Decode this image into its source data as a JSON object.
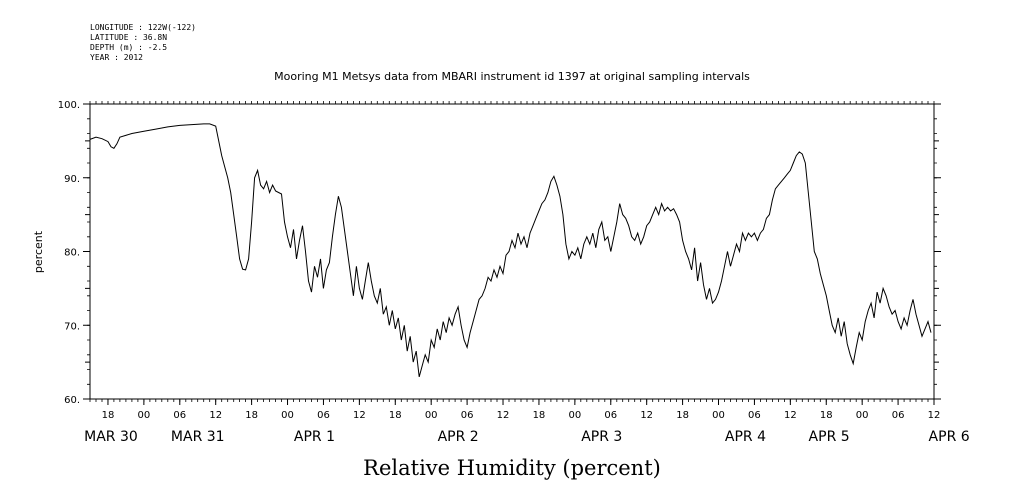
{
  "header": {
    "longitude": "LONGITUDE : 122W(-122)",
    "latitude": "LATITUDE : 36.8N",
    "depth": "DEPTH (m) : -2.5",
    "year": "YEAR : 2012"
  },
  "chart_data": {
    "type": "line",
    "title": "Mooring M1 Metsys data from MBARI instrument id 1397 at original sampling intervals",
    "xlabel": "Relative Humidity (percent)",
    "ylabel": "percent",
    "ylim": [
      60,
      100
    ],
    "yticks": [
      60,
      70,
      80,
      90,
      100
    ],
    "ytick_labels": [
      "60.",
      "70.",
      "80.",
      "90.",
      "100."
    ],
    "xlim_hours": [
      -9,
      132
    ],
    "x_unit": "hours from MAR 30 00:00, 2012",
    "hour_ticks": [
      {
        "h": -6,
        "label": "18"
      },
      {
        "h": 0,
        "label": "00"
      },
      {
        "h": 6,
        "label": "06"
      },
      {
        "h": 12,
        "label": "12"
      },
      {
        "h": 18,
        "label": "18"
      },
      {
        "h": 24,
        "label": "00"
      },
      {
        "h": 30,
        "label": "06"
      },
      {
        "h": 36,
        "label": "12"
      },
      {
        "h": 42,
        "label": "18"
      },
      {
        "h": 48,
        "label": "00"
      },
      {
        "h": 54,
        "label": "06"
      },
      {
        "h": 60,
        "label": "12"
      },
      {
        "h": 66,
        "label": "18"
      },
      {
        "h": 72,
        "label": "00"
      },
      {
        "h": 78,
        "label": "06"
      },
      {
        "h": 84,
        "label": "12"
      },
      {
        "h": 90,
        "label": "18"
      },
      {
        "h": 96,
        "label": "00"
      },
      {
        "h": 102,
        "label": "06"
      },
      {
        "h": 108,
        "label": "12"
      },
      {
        "h": 114,
        "label": "18"
      },
      {
        "h": 120,
        "label": "00"
      },
      {
        "h": 126,
        "label": "06"
      },
      {
        "h": 132,
        "label": "12"
      }
    ],
    "date_labels": [
      {
        "h": -6,
        "label": "MAR 30"
      },
      {
        "h": 9,
        "label": "MAR 31"
      },
      {
        "h": 30,
        "label": "APR  1"
      },
      {
        "h": 54,
        "label": "APR  2"
      },
      {
        "h": 78,
        "label": "APR  3"
      },
      {
        "h": 102,
        "label": "APR  4"
      },
      {
        "h": 126,
        "label": "APR  5"
      },
      {
        "h": 150,
        "label": "APR  6"
      }
    ],
    "series": [
      {
        "values": [
          [
            -9,
            95.2
          ],
          [
            -8,
            95.5
          ],
          [
            -7,
            95.3
          ],
          [
            -6,
            94.9
          ],
          [
            -5.5,
            94.2
          ],
          [
            -5,
            94.0
          ],
          [
            -4.5,
            94.6
          ],
          [
            -4,
            95.5
          ],
          [
            -2,
            96.0
          ],
          [
            0,
            96.3
          ],
          [
            2,
            96.6
          ],
          [
            4,
            96.9
          ],
          [
            6,
            97.1
          ],
          [
            8,
            97.2
          ],
          [
            10,
            97.3
          ],
          [
            11,
            97.3
          ],
          [
            12,
            97.0
          ],
          [
            13,
            93.0
          ],
          [
            13.5,
            91.5
          ],
          [
            14,
            90.0
          ],
          [
            14.5,
            88.0
          ],
          [
            15,
            85.0
          ],
          [
            15.5,
            82.0
          ],
          [
            16,
            79.0
          ],
          [
            16.5,
            77.6
          ],
          [
            17,
            77.5
          ],
          [
            17.5,
            79.0
          ],
          [
            18,
            84.0
          ],
          [
            18.5,
            90.0
          ],
          [
            19,
            91.0
          ],
          [
            19.5,
            89.0
          ],
          [
            20,
            88.5
          ],
          [
            20.5,
            89.5
          ],
          [
            21,
            88.0
          ],
          [
            21.5,
            89.0
          ],
          [
            22,
            88.2
          ],
          [
            23,
            87.8
          ],
          [
            23.5,
            84.0
          ],
          [
            24,
            82.0
          ],
          [
            24.5,
            80.5
          ],
          [
            25,
            83.0
          ],
          [
            25.5,
            79.0
          ],
          [
            26,
            81.5
          ],
          [
            26.5,
            83.5
          ],
          [
            27,
            80.0
          ],
          [
            27.5,
            76.0
          ],
          [
            28,
            74.5
          ],
          [
            28.5,
            78.0
          ],
          [
            29,
            76.5
          ],
          [
            29.5,
            79.0
          ],
          [
            30,
            75.0
          ],
          [
            30.5,
            77.5
          ],
          [
            31,
            78.5
          ],
          [
            31.5,
            82.0
          ],
          [
            32,
            85.0
          ],
          [
            32.5,
            87.5
          ],
          [
            33,
            86.0
          ],
          [
            33.5,
            83.0
          ],
          [
            34,
            80.0
          ],
          [
            34.5,
            77.0
          ],
          [
            35,
            74.0
          ],
          [
            35.5,
            78.0
          ],
          [
            36,
            75.0
          ],
          [
            36.5,
            73.5
          ],
          [
            37,
            76.0
          ],
          [
            37.5,
            78.5
          ],
          [
            38,
            76.0
          ],
          [
            38.5,
            74.0
          ],
          [
            39,
            73.0
          ],
          [
            39.5,
            75.0
          ],
          [
            40,
            71.5
          ],
          [
            40.5,
            72.5
          ],
          [
            41,
            70.0
          ],
          [
            41.5,
            72.0
          ],
          [
            42,
            69.5
          ],
          [
            42.5,
            71.0
          ],
          [
            43,
            68.0
          ],
          [
            43.5,
            70.0
          ],
          [
            44,
            66.5
          ],
          [
            44.5,
            68.5
          ],
          [
            45,
            65.0
          ],
          [
            45.5,
            66.5
          ],
          [
            46,
            63.0
          ],
          [
            46.5,
            64.5
          ],
          [
            47,
            66.0
          ],
          [
            47.5,
            65.0
          ],
          [
            48,
            68.0
          ],
          [
            48.5,
            67.0
          ],
          [
            49,
            69.5
          ],
          [
            49.5,
            68.0
          ],
          [
            50,
            70.5
          ],
          [
            50.5,
            69.0
          ],
          [
            51,
            71.0
          ],
          [
            51.5,
            70.0
          ],
          [
            52,
            71.5
          ],
          [
            52.5,
            72.5
          ],
          [
            53,
            70.0
          ],
          [
            53.5,
            68.0
          ],
          [
            54,
            67.0
          ],
          [
            54.5,
            69.0
          ],
          [
            55,
            70.5
          ],
          [
            55.5,
            72.0
          ],
          [
            56,
            73.5
          ],
          [
            56.5,
            74.0
          ],
          [
            57,
            75.0
          ],
          [
            57.5,
            76.5
          ],
          [
            58,
            76.0
          ],
          [
            58.5,
            77.5
          ],
          [
            59,
            76.5
          ],
          [
            59.5,
            78.0
          ],
          [
            60,
            77.0
          ],
          [
            60.5,
            79.5
          ],
          [
            61,
            80.0
          ],
          [
            61.5,
            81.5
          ],
          [
            62,
            80.5
          ],
          [
            62.5,
            82.5
          ],
          [
            63,
            81.0
          ],
          [
            63.5,
            82.0
          ],
          [
            64,
            80.5
          ],
          [
            64.5,
            82.5
          ],
          [
            65,
            83.5
          ],
          [
            65.5,
            84.5
          ],
          [
            66,
            85.5
          ],
          [
            66.5,
            86.5
          ],
          [
            67,
            87.0
          ],
          [
            67.5,
            88.0
          ],
          [
            68,
            89.5
          ],
          [
            68.5,
            90.2
          ],
          [
            69,
            89.0
          ],
          [
            69.5,
            87.5
          ],
          [
            70,
            85.0
          ],
          [
            70.5,
            81.0
          ],
          [
            71,
            79.0
          ],
          [
            71.5,
            80.0
          ],
          [
            72,
            79.5
          ],
          [
            72.5,
            80.5
          ],
          [
            73,
            79.0
          ],
          [
            73.5,
            81.0
          ],
          [
            74,
            82.0
          ],
          [
            74.5,
            81.0
          ],
          [
            75,
            82.5
          ],
          [
            75.5,
            80.5
          ],
          [
            76,
            83.0
          ],
          [
            76.5,
            84.0
          ],
          [
            77,
            81.5
          ],
          [
            77.5,
            82.0
          ],
          [
            78,
            80.0
          ],
          [
            78.5,
            82.0
          ],
          [
            79,
            84.0
          ],
          [
            79.5,
            86.5
          ],
          [
            80,
            85.0
          ],
          [
            80.5,
            84.5
          ],
          [
            81,
            83.5
          ],
          [
            81.5,
            82.0
          ],
          [
            82,
            81.5
          ],
          [
            82.5,
            82.5
          ],
          [
            83,
            81.0
          ],
          [
            83.5,
            82.0
          ],
          [
            84,
            83.5
          ],
          [
            84.5,
            84.0
          ],
          [
            85,
            85.0
          ],
          [
            85.5,
            86.0
          ],
          [
            86,
            85.0
          ],
          [
            86.5,
            86.5
          ],
          [
            87,
            85.5
          ],
          [
            87.5,
            86.0
          ],
          [
            88,
            85.5
          ],
          [
            88.5,
            85.8
          ],
          [
            89,
            85.0
          ],
          [
            89.5,
            84.0
          ],
          [
            90,
            81.5
          ],
          [
            90.5,
            80.0
          ],
          [
            91,
            79.0
          ],
          [
            91.5,
            77.5
          ],
          [
            92,
            80.5
          ],
          [
            92.5,
            76.0
          ],
          [
            93,
            78.5
          ],
          [
            93.5,
            75.5
          ],
          [
            94,
            73.5
          ],
          [
            94.5,
            75.0
          ],
          [
            95,
            73.0
          ],
          [
            95.5,
            73.5
          ],
          [
            96,
            74.5
          ],
          [
            96.5,
            76.0
          ],
          [
            97,
            78.0
          ],
          [
            97.5,
            80.0
          ],
          [
            98,
            78.0
          ],
          [
            98.5,
            79.5
          ],
          [
            99,
            81.0
          ],
          [
            99.5,
            80.0
          ],
          [
            100,
            82.5
          ],
          [
            100.5,
            81.5
          ],
          [
            101,
            82.5
          ],
          [
            101.5,
            82.0
          ],
          [
            102,
            82.5
          ],
          [
            102.5,
            81.5
          ],
          [
            103,
            82.5
          ],
          [
            103.5,
            83.0
          ],
          [
            104,
            84.5
          ],
          [
            104.5,
            85.0
          ],
          [
            105,
            87.0
          ],
          [
            105.5,
            88.5
          ],
          [
            106,
            89.0
          ],
          [
            106.5,
            89.5
          ],
          [
            107,
            90.0
          ],
          [
            107.5,
            90.5
          ],
          [
            108,
            91.0
          ],
          [
            108.5,
            92.0
          ],
          [
            109,
            93.0
          ],
          [
            109.5,
            93.5
          ],
          [
            110,
            93.2
          ],
          [
            110.5,
            92.0
          ],
          [
            111,
            88.0
          ],
          [
            111.5,
            84.0
          ],
          [
            112,
            80.0
          ],
          [
            112.5,
            79.0
          ],
          [
            113,
            77.0
          ],
          [
            113.5,
            75.5
          ],
          [
            114,
            74.0
          ],
          [
            114.5,
            72.0
          ],
          [
            115,
            70.0
          ],
          [
            115.5,
            69.0
          ],
          [
            116,
            71.0
          ],
          [
            116.5,
            68.5
          ],
          [
            117,
            70.5
          ],
          [
            117.5,
            67.5
          ],
          [
            118,
            66.0
          ],
          [
            118.5,
            64.8
          ],
          [
            119,
            67.0
          ],
          [
            119.5,
            69.0
          ],
          [
            120,
            68.0
          ],
          [
            120.5,
            70.5
          ],
          [
            121,
            72.0
          ],
          [
            121.5,
            73.0
          ],
          [
            122,
            71.0
          ],
          [
            122.5,
            74.5
          ],
          [
            123,
            73.0
          ],
          [
            123.5,
            75.0
          ],
          [
            124,
            74.0
          ],
          [
            124.5,
            72.5
          ],
          [
            125,
            71.5
          ],
          [
            125.5,
            72.0
          ],
          [
            126,
            70.5
          ],
          [
            126.5,
            69.5
          ],
          [
            127,
            71.0
          ],
          [
            127.5,
            70.0
          ],
          [
            128,
            72.0
          ],
          [
            128.5,
            73.5
          ],
          [
            129,
            71.5
          ],
          [
            129.5,
            70.0
          ],
          [
            130,
            68.5
          ],
          [
            130.5,
            69.5
          ],
          [
            131,
            70.5
          ],
          [
            131.5,
            69.0
          ]
        ]
      }
    ]
  }
}
